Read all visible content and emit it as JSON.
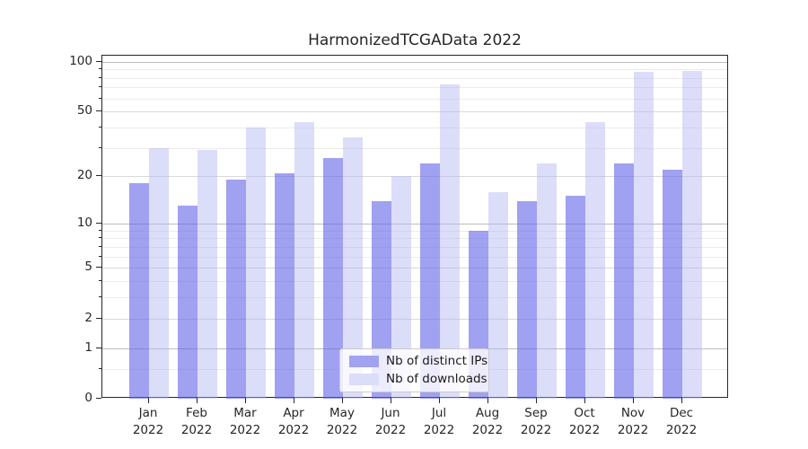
{
  "title": "HarmonizedTCGAData 2022",
  "chart_data": {
    "type": "bar",
    "categories": [
      "Jan",
      "Feb",
      "Mar",
      "Apr",
      "May",
      "Jun",
      "Jul",
      "Aug",
      "Sep",
      "Oct",
      "Nov",
      "Dec"
    ],
    "year_label": "2022",
    "series": [
      {
        "name": "Nb of distinct IPs",
        "color": "#a1a2f0",
        "fill_rgba": "rgba(96,98,232,0.6)",
        "values": [
          18,
          13,
          19,
          21,
          26,
          14,
          24,
          9,
          14,
          15,
          24,
          22
        ]
      },
      {
        "name": "Nb of downloads",
        "color": "#dcddf9",
        "fill_rgba": "rgba(178,180,242,0.45)",
        "values": [
          30,
          29,
          40,
          43,
          35,
          20,
          73,
          16,
          24,
          43,
          87,
          88
        ]
      }
    ],
    "y_axis": {
      "scale": "log1p",
      "ticks": [
        0,
        1,
        2,
        5,
        10,
        20,
        50,
        100
      ],
      "decade_ticks": [
        1,
        10,
        100
      ],
      "minor_ticks": [
        0.5,
        3,
        4,
        6,
        7,
        8,
        9,
        30,
        40,
        60,
        70,
        80,
        90
      ],
      "ylim": [
        0,
        108
      ]
    },
    "grid": true,
    "legend_position": "lower center"
  }
}
